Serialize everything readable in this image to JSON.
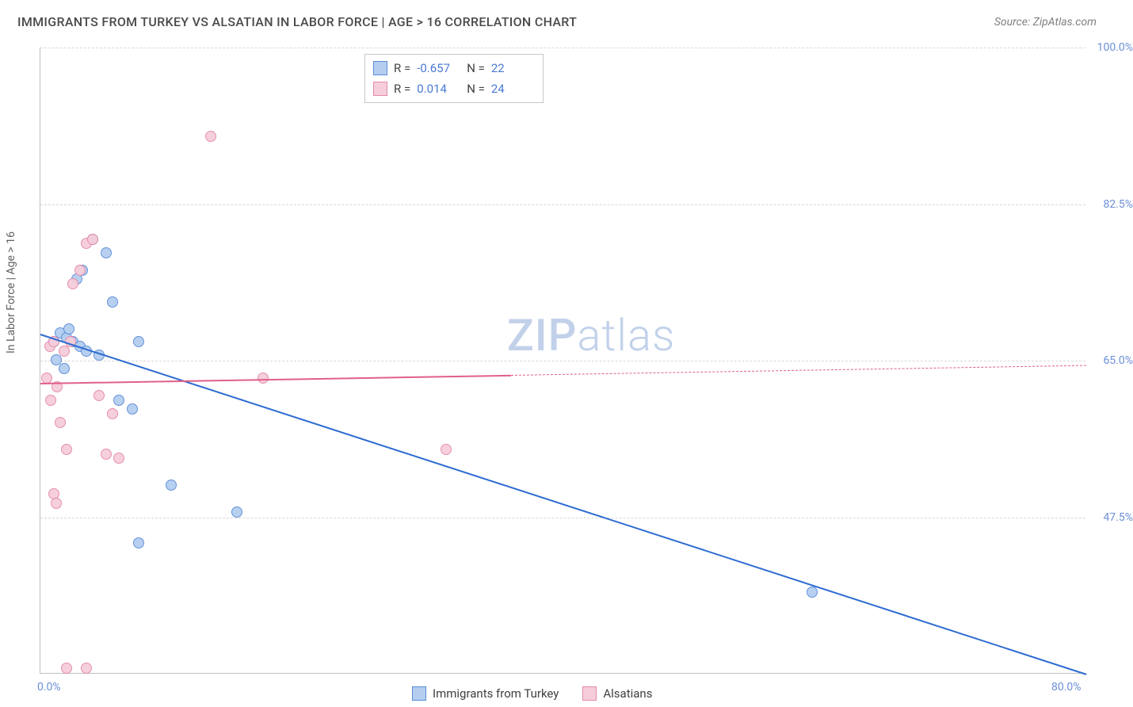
{
  "title": "IMMIGRANTS FROM TURKEY VS ALSATIAN IN LABOR FORCE | AGE > 16 CORRELATION CHART",
  "source": "Source: ZipAtlas.com",
  "ylabel": "In Labor Force | Age > 16",
  "watermark_a": "ZIP",
  "watermark_b": "atlas",
  "chart": {
    "type": "scatter-with-regression",
    "background_color": "#ffffff",
    "grid_color": "#d8d8d8",
    "axis_color": "#c0c0c0",
    "tick_color": "#6b8fd6",
    "label_color": "#606060",
    "title_color": "#4a4a4a",
    "title_fontsize": 16,
    "label_fontsize": 14,
    "tick_fontsize": 14,
    "xlim": [
      0,
      80
    ],
    "ylim": [
      30,
      100
    ],
    "yticks": [
      47.5,
      65.0,
      82.5,
      100.0
    ],
    "ytick_labels": [
      "47.5%",
      "65.0%",
      "82.5%",
      "100.0%"
    ],
    "xticks": [
      0,
      80
    ],
    "xtick_labels": [
      "0.0%",
      "80.0%"
    ],
    "marker_radius": 7,
    "marker_border_width": 1.5,
    "marker_fill_opacity": 0.35,
    "series": [
      {
        "name": "Immigrants from Turkey",
        "color_fill": "#b5cef0",
        "color_border": "#5a8cd8",
        "R": "-0.657",
        "N": "22",
        "points": [
          [
            1.0,
            67.0
          ],
          [
            1.5,
            68.0
          ],
          [
            2.0,
            67.5
          ],
          [
            2.5,
            67.0
          ],
          [
            3.0,
            66.5
          ],
          [
            4.0,
            78.5
          ],
          [
            5.0,
            77.0
          ],
          [
            5.5,
            71.5
          ],
          [
            7.5,
            67.0
          ],
          [
            6.0,
            60.5
          ],
          [
            7.0,
            59.5
          ],
          [
            7.5,
            44.5
          ],
          [
            10.0,
            51.0
          ],
          [
            15.0,
            48.0
          ],
          [
            59.0,
            39.0
          ],
          [
            1.2,
            65.0
          ],
          [
            1.8,
            64.0
          ],
          [
            2.2,
            68.5
          ],
          [
            3.5,
            66.0
          ],
          [
            2.8,
            74.0
          ],
          [
            3.2,
            75.0
          ],
          [
            4.5,
            65.5
          ]
        ],
        "trend": {
          "x0": 0,
          "y0": 68.0,
          "x1": 80,
          "y1": 30.0,
          "color": "#2e6cd1",
          "width": 2,
          "solid_until_x": 80
        }
      },
      {
        "name": "Alsatians",
        "color_fill": "#f6cddb",
        "color_border": "#e38aaa",
        "R": "0.014",
        "N": "24",
        "points": [
          [
            0.5,
            63.0
          ],
          [
            0.8,
            60.5
          ],
          [
            1.0,
            50.0
          ],
          [
            1.2,
            49.0
          ],
          [
            1.5,
            58.0
          ],
          [
            2.0,
            55.0
          ],
          [
            2.5,
            73.5
          ],
          [
            3.0,
            75.0
          ],
          [
            3.5,
            78.0
          ],
          [
            4.0,
            78.5
          ],
          [
            4.5,
            61.0
          ],
          [
            5.0,
            54.5
          ],
          [
            5.5,
            59.0
          ],
          [
            6.0,
            54.0
          ],
          [
            13.0,
            90.0
          ],
          [
            17.0,
            63.0
          ],
          [
            31.0,
            55.0
          ],
          [
            2.0,
            30.5
          ],
          [
            3.5,
            30.5
          ],
          [
            1.3,
            62.0
          ],
          [
            1.8,
            66.0
          ],
          [
            2.3,
            67.0
          ],
          [
            0.7,
            66.5
          ],
          [
            1.0,
            67.0
          ]
        ],
        "trend": {
          "x0": 0,
          "y0": 62.5,
          "x1": 80,
          "y1": 64.5,
          "color": "#e05f8c",
          "width": 2,
          "solid_until_x": 36
        }
      }
    ]
  },
  "legend_top_rows": [
    {
      "sw_fill": "#b5cef0",
      "sw_border": "#5a8cd8",
      "r_label": "R =",
      "r_val": "-0.657",
      "n_label": "N =",
      "n_val": "22"
    },
    {
      "sw_fill": "#f6cddb",
      "sw_border": "#e38aaa",
      "r_label": "R =",
      "r_val": "0.014",
      "n_label": "N =",
      "n_val": "24"
    }
  ],
  "legend_bottom": [
    {
      "sw_fill": "#b5cef0",
      "sw_border": "#5a8cd8",
      "label": "Immigrants from Turkey"
    },
    {
      "sw_fill": "#f6cddb",
      "sw_border": "#e38aaa",
      "label": "Alsatians"
    }
  ]
}
